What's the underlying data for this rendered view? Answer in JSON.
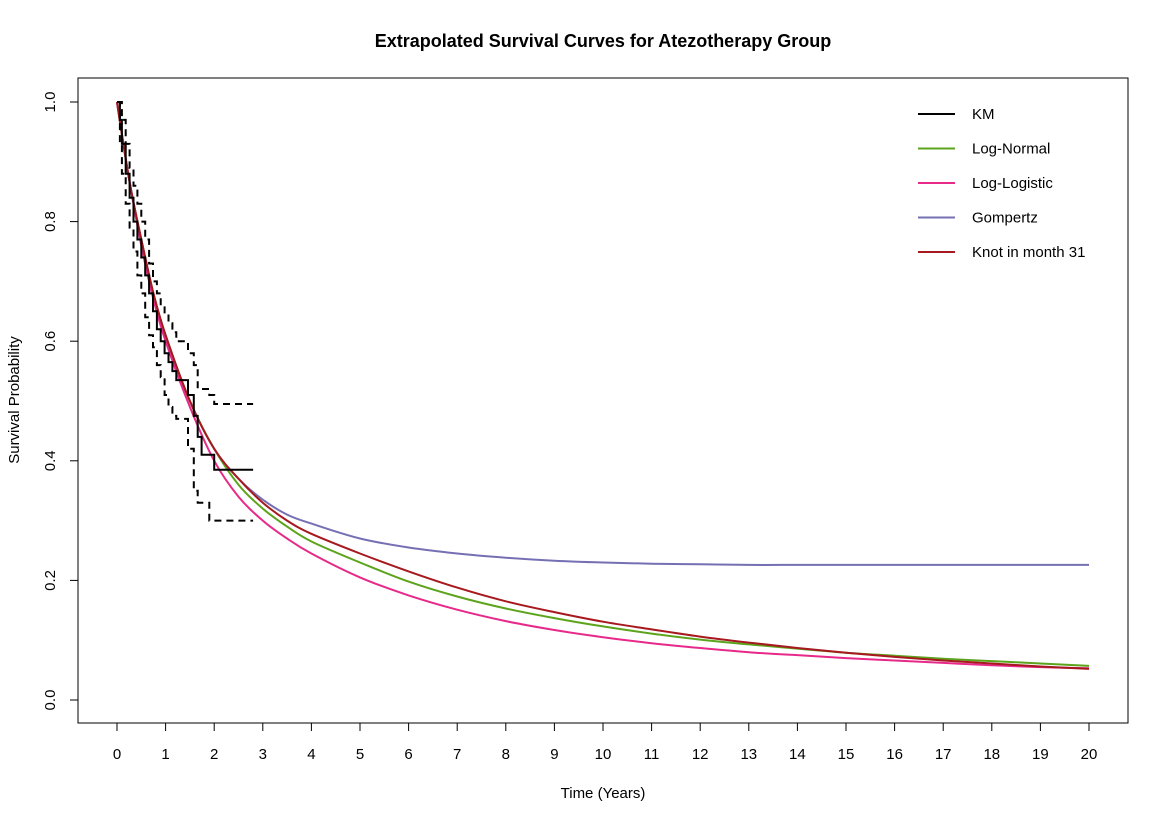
{
  "chart_data": {
    "type": "line",
    "title": "Extrapolated Survival Curves for Atezotherapy Group",
    "xlabel": "Time (Years)",
    "ylabel": "Survival Probability",
    "xlim": [
      0,
      20
    ],
    "ylim": [
      0,
      1
    ],
    "x_ticks": [
      0,
      1,
      2,
      3,
      4,
      5,
      6,
      7,
      8,
      9,
      10,
      11,
      12,
      13,
      14,
      15,
      16,
      17,
      18,
      19,
      20
    ],
    "y_ticks": [
      0.0,
      0.2,
      0.4,
      0.6,
      0.8,
      1.0
    ],
    "y_tick_labels": [
      "0.0",
      "0.2",
      "0.4",
      "0.6",
      "0.8",
      "1.0"
    ],
    "grid": false,
    "legend_position": "top-right",
    "legend": [
      "KM",
      "Log-Normal",
      "Log-Logistic",
      "Gompertz",
      "Knot in month 31"
    ],
    "series": [
      {
        "name": "KM",
        "color": "#000000",
        "style": "step",
        "x": [
          0,
          0.06,
          0.1,
          0.18,
          0.26,
          0.34,
          0.42,
          0.5,
          0.58,
          0.66,
          0.74,
          0.82,
          0.9,
          0.98,
          1.06,
          1.14,
          1.22,
          1.34,
          1.46,
          1.58,
          1.66,
          1.74,
          1.9,
          2.0,
          2.2,
          2.4,
          2.6,
          2.8
        ],
        "y": [
          1.0,
          0.97,
          0.93,
          0.88,
          0.84,
          0.8,
          0.77,
          0.74,
          0.71,
          0.68,
          0.65,
          0.62,
          0.6,
          0.58,
          0.565,
          0.55,
          0.535,
          0.535,
          0.51,
          0.475,
          0.44,
          0.41,
          0.41,
          0.385,
          0.385,
          0.385,
          0.385,
          0.385
        ]
      },
      {
        "name": "KM upper CI",
        "color": "#000000",
        "style": "step-dashed",
        "x": [
          0,
          0.06,
          0.1,
          0.18,
          0.26,
          0.34,
          0.42,
          0.5,
          0.58,
          0.66,
          0.74,
          0.82,
          0.9,
          0.98,
          1.06,
          1.14,
          1.22,
          1.34,
          1.46,
          1.58,
          1.66,
          1.74,
          1.9,
          2.0,
          2.2,
          2.4,
          2.6,
          2.8
        ],
        "y": [
          1.0,
          1.0,
          0.97,
          0.93,
          0.89,
          0.86,
          0.83,
          0.8,
          0.77,
          0.73,
          0.7,
          0.68,
          0.66,
          0.645,
          0.63,
          0.615,
          0.6,
          0.6,
          0.58,
          0.56,
          0.52,
          0.52,
          0.51,
          0.495,
          0.495,
          0.495,
          0.495,
          0.495
        ]
      },
      {
        "name": "KM lower CI",
        "color": "#000000",
        "style": "step-dashed",
        "x": [
          0,
          0.06,
          0.1,
          0.18,
          0.26,
          0.34,
          0.42,
          0.5,
          0.58,
          0.66,
          0.74,
          0.82,
          0.9,
          0.98,
          1.06,
          1.14,
          1.22,
          1.34,
          1.46,
          1.58,
          1.66,
          1.74,
          1.9,
          2.0,
          2.2,
          2.4,
          2.6,
          2.8
        ],
        "y": [
          1.0,
          0.93,
          0.88,
          0.83,
          0.79,
          0.75,
          0.71,
          0.68,
          0.64,
          0.61,
          0.59,
          0.56,
          0.54,
          0.51,
          0.49,
          0.475,
          0.47,
          0.47,
          0.42,
          0.35,
          0.33,
          0.33,
          0.3,
          0.3,
          0.3,
          0.3,
          0.3,
          0.3
        ]
      },
      {
        "name": "Log-Normal",
        "color": "#5ba41c",
        "x": [
          0,
          0.25,
          0.5,
          0.75,
          1,
          1.5,
          2,
          2.5,
          3,
          3.5,
          4,
          5,
          6,
          7,
          8,
          9,
          10,
          11,
          12,
          13,
          14,
          15,
          16,
          17,
          18,
          19,
          20
        ],
        "y": [
          1.0,
          0.87,
          0.77,
          0.68,
          0.61,
          0.5,
          0.42,
          0.36,
          0.32,
          0.29,
          0.265,
          0.23,
          0.198,
          0.173,
          0.153,
          0.137,
          0.123,
          0.111,
          0.101,
          0.093,
          0.086,
          0.079,
          0.074,
          0.069,
          0.065,
          0.061,
          0.057
        ]
      },
      {
        "name": "Log-Logistic",
        "color": "#e7298a",
        "x": [
          0,
          0.25,
          0.5,
          0.75,
          1,
          1.5,
          2,
          2.5,
          3,
          3.5,
          4,
          5,
          6,
          7,
          8,
          9,
          10,
          11,
          12,
          13,
          14,
          15,
          16,
          17,
          18,
          19,
          20
        ],
        "y": [
          1.0,
          0.87,
          0.76,
          0.67,
          0.6,
          0.49,
          0.4,
          0.34,
          0.3,
          0.27,
          0.245,
          0.205,
          0.175,
          0.151,
          0.132,
          0.117,
          0.105,
          0.095,
          0.087,
          0.08,
          0.075,
          0.07,
          0.066,
          0.062,
          0.058,
          0.055,
          0.053
        ]
      },
      {
        "name": "Gompertz",
        "color": "#7570b3",
        "x": [
          0,
          0.25,
          0.5,
          0.75,
          1,
          1.5,
          2,
          2.5,
          3,
          3.5,
          4,
          5,
          6,
          7,
          8,
          9,
          10,
          11,
          12,
          13,
          14,
          15,
          16,
          17,
          18,
          19,
          20
        ],
        "y": [
          1.0,
          0.87,
          0.77,
          0.68,
          0.61,
          0.5,
          0.42,
          0.37,
          0.335,
          0.31,
          0.295,
          0.27,
          0.255,
          0.245,
          0.238,
          0.233,
          0.23,
          0.228,
          0.227,
          0.226,
          0.226,
          0.226,
          0.226,
          0.226,
          0.226,
          0.226,
          0.226
        ]
      },
      {
        "name": "Knot in month 31",
        "color": "#a6191e",
        "x": [
          0,
          0.25,
          0.5,
          0.75,
          1,
          1.5,
          2,
          2.5,
          3,
          3.5,
          4,
          5,
          6,
          7,
          8,
          9,
          10,
          11,
          12,
          13,
          14,
          15,
          16,
          17,
          18,
          19,
          20
        ],
        "y": [
          1.0,
          0.87,
          0.77,
          0.68,
          0.61,
          0.5,
          0.42,
          0.37,
          0.33,
          0.3,
          0.278,
          0.245,
          0.215,
          0.188,
          0.165,
          0.147,
          0.131,
          0.118,
          0.106,
          0.096,
          0.087,
          0.079,
          0.072,
          0.066,
          0.061,
          0.056,
          0.052
        ]
      }
    ]
  }
}
